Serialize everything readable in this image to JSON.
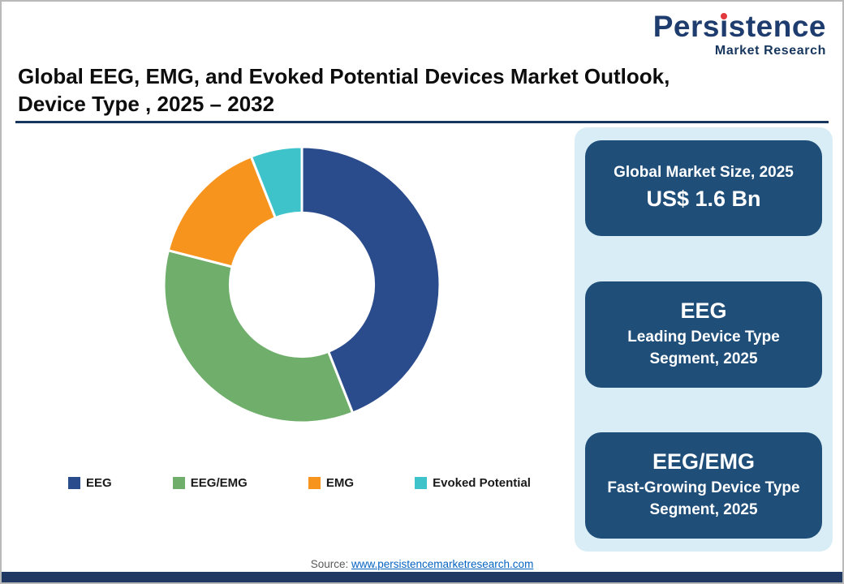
{
  "logo": {
    "brand_pre": "Pers",
    "brand_i": "ı",
    "brand_post": "stence",
    "subtitle": "Market Research"
  },
  "title": {
    "line1": "Global EEG, EMG, and Evoked Potential Devices Market Outlook,",
    "line2": "Device Type , 2025 – 2032"
  },
  "chart_data": {
    "type": "pie",
    "donut": true,
    "title": "Global EEG, EMG, and Evoked Potential Devices Market Outlook, Device Type, 2025 – 2032",
    "start_angle_deg": -90,
    "direction": "clockwise",
    "hole_ratio": 0.53,
    "legend_position": "bottom",
    "values_are_estimated_shares_pct": true,
    "slices": [
      {
        "label": "EEG",
        "value": 44,
        "color": "#2b4c8c"
      },
      {
        "label": "EEG/EMG",
        "value": 35,
        "color": "#6fae6b"
      },
      {
        "label": "EMG",
        "value": 15,
        "color": "#f7941e"
      },
      {
        "label": "Evoked Potential",
        "value": 6,
        "color": "#3ec3cb"
      }
    ]
  },
  "info_panel": {
    "cards": [
      {
        "top": "Global Market Size, 2025",
        "bottom": "US$ 1.6 Bn"
      },
      {
        "top": "EEG",
        "bottom": "Leading Device Type Segment, 2025"
      },
      {
        "top": "EEG/EMG",
        "bottom": "Fast-Growing Device Type Segment, 2025"
      }
    ]
  },
  "source": {
    "label": "Source:",
    "link_text": "www.persistencemarketresearch.com"
  },
  "colors": {
    "brand_blue": "#1e3c6e",
    "logo_dot_red": "#e0393e",
    "title_rule": "#17365d",
    "panel_bg": "#d8edf6",
    "card_bg": "#1f4e79",
    "footer_bar": "#1f3864",
    "link_blue": "#0563c1"
  }
}
